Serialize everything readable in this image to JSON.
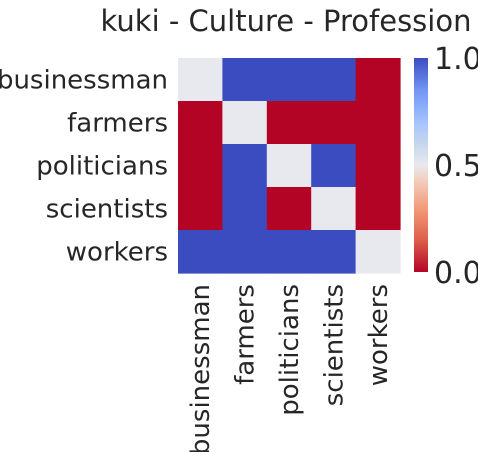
{
  "chart_data": {
    "type": "heatmap",
    "title": "kuki - Culture - Profession",
    "xlabel": "",
    "ylabel": "",
    "rows": [
      "businessman",
      "farmers",
      "politicians",
      "scientists",
      "workers"
    ],
    "columns": [
      "businessman",
      "farmers",
      "politicians",
      "scientists",
      "workers"
    ],
    "values": [
      [
        0.5,
        1.0,
        1.0,
        1.0,
        0.0
      ],
      [
        0.0,
        0.5,
        0.0,
        0.0,
        0.0
      ],
      [
        0.0,
        1.0,
        0.5,
        1.0,
        0.0
      ],
      [
        0.0,
        1.0,
        0.0,
        0.5,
        0.0
      ],
      [
        1.0,
        1.0,
        1.0,
        1.0,
        0.5
      ]
    ],
    "vmin": 0.0,
    "vmax": 1.0,
    "colormap": "coolwarm_r",
    "colors": {
      "high": "#3b4cc0",
      "mid": "#e8e9ef",
      "low": "#b40426"
    },
    "colorbar": {
      "ticks": [
        0.0,
        0.5,
        1.0
      ],
      "tick_labels": [
        "0.0",
        "0.5",
        "1.0"
      ]
    }
  }
}
